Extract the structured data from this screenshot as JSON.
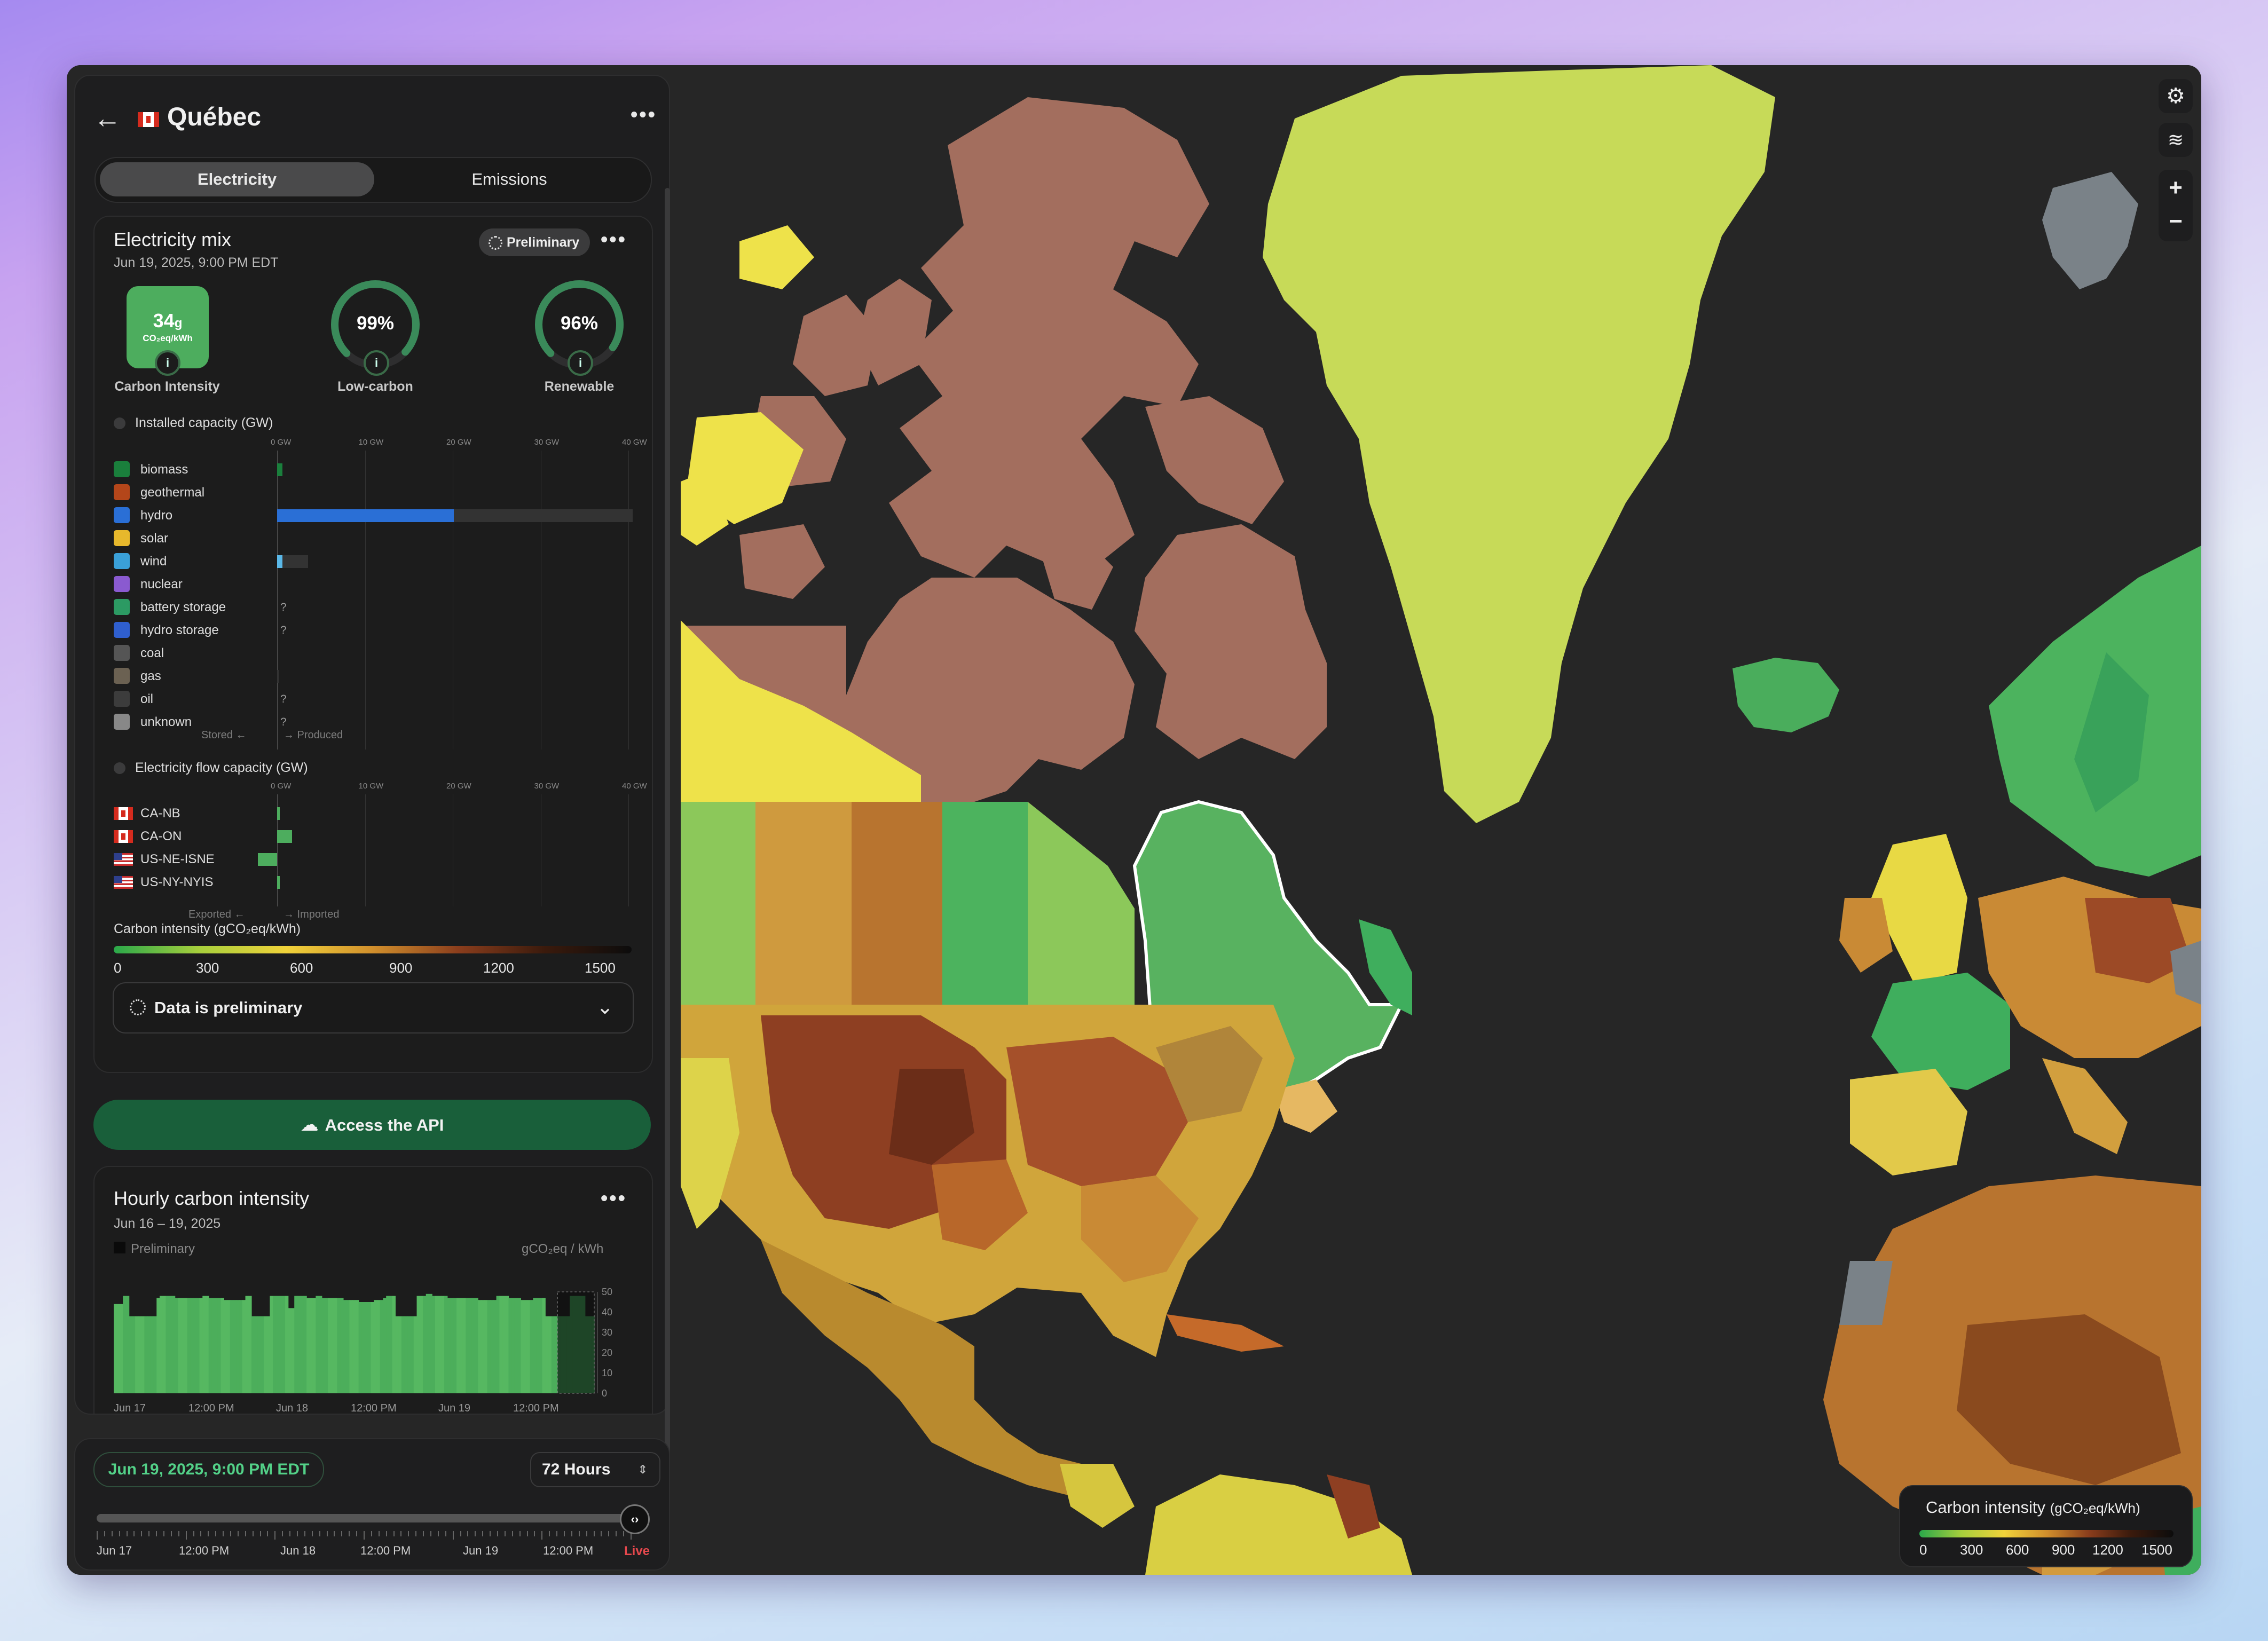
{
  "zone": {
    "name": "Québec"
  },
  "tabs": {
    "electricity": "Electricity",
    "emissions": "Emissions"
  },
  "mix": {
    "title": "Electricity mix",
    "datetime": "Jun 19, 2025, 9:00 PM EDT",
    "badge": "Preliminary",
    "carbon_intensity_value": "34",
    "carbon_intensity_suffix": "g",
    "carbon_intensity_unit": "CO₂eq/kWh",
    "carbon_intensity_label": "Carbon Intensity",
    "low_carbon_value": "99%",
    "low_carbon_fraction": 0.99,
    "low_carbon_label": "Low-carbon",
    "renewable_value": "96%",
    "renewable_fraction": 0.96,
    "renewable_label": "Renewable"
  },
  "capacity": {
    "title": "Installed capacity (GW)",
    "axis": [
      "0 GW",
      "10 GW",
      "20 GW",
      "30 GW",
      "40 GW"
    ],
    "axis_max_gw": 40,
    "sources": [
      {
        "label": "biomass",
        "icon": "biomass-icon",
        "color": "#1a7f3c",
        "produced_gw": 0.6,
        "capacity_gw": 0.6,
        "unknown": false
      },
      {
        "label": "geothermal",
        "icon": "geothermal-icon",
        "color": "#b4461a",
        "produced_gw": 0,
        "capacity_gw": 0,
        "unknown": false
      },
      {
        "label": "hydro",
        "icon": "hydro-icon",
        "color": "#2a6fd6",
        "produced_gw": 20.1,
        "capacity_gw": 42,
        "unknown": false
      },
      {
        "label": "solar",
        "icon": "solar-icon",
        "color": "#e7b82c",
        "produced_gw": 0,
        "capacity_gw": 0,
        "unknown": false
      },
      {
        "label": "wind",
        "icon": "wind-icon",
        "color": "#3aa0d8",
        "produced_gw": 0.6,
        "capacity_gw": 3.5,
        "unknown": false
      },
      {
        "label": "nuclear",
        "icon": "nuclear-icon",
        "color": "#8a5ad0",
        "produced_gw": 0,
        "capacity_gw": 0,
        "unknown": false
      },
      {
        "label": "battery storage",
        "icon": "battery-icon",
        "color": "#2c9a63",
        "produced_gw": 0,
        "capacity_gw": 0,
        "unknown": true
      },
      {
        "label": "hydro storage",
        "icon": "hydro-storage-icon",
        "color": "#2f5fcf",
        "produced_gw": 0,
        "capacity_gw": 0,
        "unknown": true
      },
      {
        "label": "coal",
        "icon": "coal-icon",
        "color": "#555555",
        "produced_gw": 0,
        "capacity_gw": 0,
        "unknown": false
      },
      {
        "label": "gas",
        "icon": "gas-icon",
        "color": "#6b6152",
        "produced_gw": 0,
        "capacity_gw": 0.2,
        "unknown": false
      },
      {
        "label": "oil",
        "icon": "oil-icon",
        "color": "#3c3c3c",
        "produced_gw": 0,
        "capacity_gw": 0,
        "unknown": true
      },
      {
        "label": "unknown",
        "icon": "unknown-icon",
        "color": "#888888",
        "produced_gw": 0,
        "capacity_gw": 0,
        "unknown": true
      }
    ],
    "stored_label": "Stored ←",
    "produced_label": "→ Produced"
  },
  "flows": {
    "title": "Electricity flow capacity (GW)",
    "axis": [
      "0 GW",
      "10 GW",
      "20 GW",
      "30 GW",
      "40 GW"
    ],
    "zones": [
      {
        "label": "CA-NB",
        "flag": "ca",
        "value_gw": 0.3
      },
      {
        "label": "CA-ON",
        "flag": "ca",
        "value_gw": 1.7
      },
      {
        "label": "US-NE-ISNE",
        "flag": "us",
        "value_gw": -2.2
      },
      {
        "label": "US-NY-NYIS",
        "flag": "us",
        "value_gw": 0.2
      }
    ],
    "exported_label": "Exported ←",
    "imported_label": "→ Imported"
  },
  "ci_legend": {
    "title": "Carbon intensity (gCO₂eq/kWh)",
    "ticks": [
      "0",
      "300",
      "600",
      "900",
      "1200",
      "1500"
    ]
  },
  "preliminary_notice": "Data is preliminary",
  "api_button": "Access the API",
  "hourly": {
    "title": "Hourly carbon intensity",
    "range": "Jun 16 – 19, 2025",
    "legend_preliminary": "Preliminary",
    "unit": "gCO₂eq / kWh",
    "y_ticks": [
      "50",
      "40",
      "30",
      "20",
      "10",
      "0"
    ],
    "y_max": 50,
    "x_ticks": [
      "Jun 17",
      "12:00 PM",
      "Jun 18",
      "12:00 PM",
      "Jun 19",
      "12:00 PM"
    ],
    "values": [
      44,
      44,
      44,
      48,
      48,
      38,
      38,
      38,
      38,
      38,
      38,
      38,
      38,
      38,
      47,
      48,
      48,
      48,
      48,
      48,
      47,
      47,
      47,
      47,
      47,
      47,
      47,
      47,
      47,
      48,
      48,
      47,
      47,
      47,
      47,
      47,
      46,
      46,
      46,
      46,
      46,
      46,
      46,
      48,
      48,
      38,
      38,
      38,
      38,
      38,
      38,
      48,
      48,
      48,
      48,
      48,
      48,
      42,
      42,
      48,
      48,
      48,
      48,
      47,
      47,
      47,
      48,
      48,
      47,
      47,
      47,
      47,
      47,
      47,
      47,
      46,
      46,
      46,
      46,
      46,
      45,
      45,
      45,
      45,
      45,
      46,
      46,
      46,
      47,
      48,
      48,
      48,
      38,
      38,
      38,
      38,
      38,
      38,
      38,
      48,
      48,
      48,
      49,
      49,
      48,
      48,
      48,
      48,
      48,
      47,
      47,
      47,
      47,
      47,
      47,
      47,
      47,
      47,
      47,
      46,
      46,
      46,
      46,
      46,
      46,
      48,
      48,
      48,
      48,
      47,
      47,
      47,
      47,
      46,
      46,
      46,
      46,
      47,
      47,
      47,
      47,
      38,
      38,
      38,
      38,
      38,
      38,
      38,
      38,
      48,
      48,
      48,
      48,
      48,
      38,
      38,
      38
    ],
    "preliminary_from_index": 145
  },
  "time": {
    "current": "Jun 19, 2025, 9:00 PM EDT",
    "range_selector": "72 Hours",
    "ticks": [
      "Jun 17",
      "12:00 PM",
      "Jun 18",
      "12:00 PM",
      "Jun 19",
      "12:00 PM"
    ],
    "live": "Live"
  },
  "map_legend": {
    "title": "Carbon intensity",
    "unit": "(gCO₂eq/kWh)",
    "ticks": [
      "0",
      "300",
      "600",
      "900",
      "1200",
      "1500"
    ]
  },
  "map_controls": {
    "zoom_in": "+",
    "zoom_out": "−"
  }
}
